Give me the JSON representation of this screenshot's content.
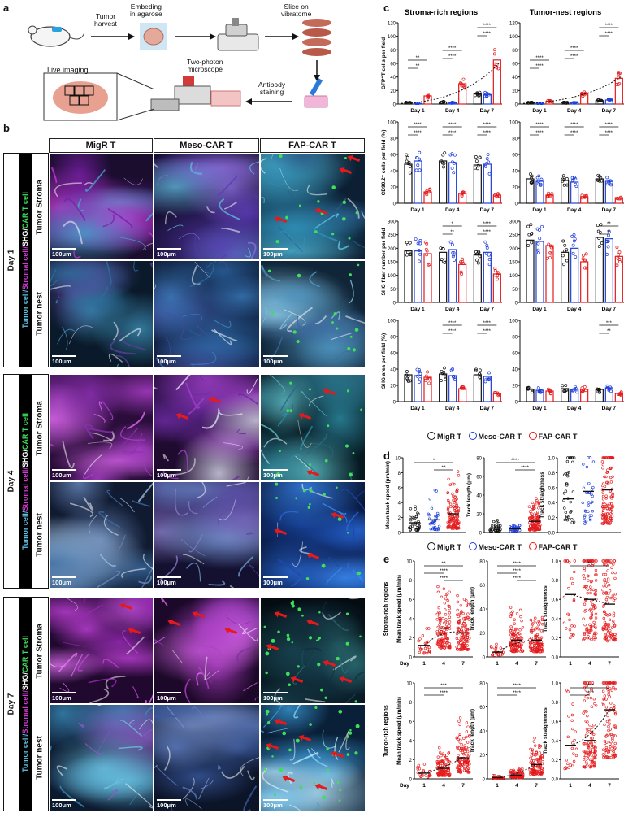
{
  "panels": {
    "a": "a",
    "b": "b",
    "c": "c",
    "d": "d",
    "e": "e"
  },
  "workflow": {
    "tumor_harvest": "Tumor\nharvest",
    "embedding": "Embeding\nin agarose",
    "slice": "Slice on\nvibratome",
    "two_photon": "Two-photon\nmicroscope",
    "antibody": "Antibody\nstaining",
    "live_imaging": "Live imaging"
  },
  "grid": {
    "columns": [
      "MigR T",
      "Meso-CAR T",
      "FAP-CAR T"
    ],
    "days": [
      "Day 1",
      "Day 4",
      "Day 7"
    ],
    "rows": [
      "Tumor Stroma",
      "Tumor nest"
    ],
    "stain": {
      "tumor": "Tumor cell/",
      "stromal": "Stromal cell/",
      "shg": "SHG/",
      "car": "CAR T cell"
    },
    "scale_bar": "100μm",
    "tile_colors": [
      {
        "mix": [
          "#7a1fa8",
          "#3fa9c9",
          "#c63bd4"
        ],
        "bg": "#1a0d2e"
      },
      {
        "mix": [
          "#5b3bb8",
          "#8a6bd6",
          "#5fb4d8"
        ],
        "bg": "#160f33"
      },
      {
        "mix": [
          "#2f8fb6",
          "#5ec4de",
          "#2a5a8a"
        ],
        "bg": "#0c1f33"
      },
      {
        "mix": [
          "#2b6f9a",
          "#3d8fb8",
          "#5a3f9a"
        ],
        "bg": "#0a1a2a"
      },
      {
        "mix": [
          "#2d67a4",
          "#3d7fc0",
          "#4a4aa0"
        ],
        "bg": "#0b1630"
      },
      {
        "mix": [
          "#4f95c0",
          "#87c4df",
          "#3d6aa0"
        ],
        "bg": "#102538"
      },
      {
        "mix": [
          "#b03fd0",
          "#e06af0",
          "#8a2fb0"
        ],
        "bg": "#2a0d3a"
      },
      {
        "mix": [
          "#a03fc8",
          "#dcdcee",
          "#6a2aa0"
        ],
        "bg": "#1f0b30"
      },
      {
        "mix": [
          "#2f8fa8",
          "#5fc0c8",
          "#2a6a80"
        ],
        "bg": "#071a22"
      },
      {
        "mix": [
          "#3a6aa0",
          "#6a8ac0",
          "#9ab8d8"
        ],
        "bg": "#101a30"
      },
      {
        "mix": [
          "#5a4aa8",
          "#8a7ac8",
          "#6a9ac8"
        ],
        "bg": "#141030"
      },
      {
        "mix": [
          "#2a6ad8",
          "#3a8af0",
          "#1a4aa8"
        ],
        "bg": "#061030"
      },
      {
        "mix": [
          "#c040d8",
          "#e070f0",
          "#9a2ab8"
        ],
        "bg": "#20082e"
      },
      {
        "mix": [
          "#b040c8",
          "#d868e8",
          "#8030a8"
        ],
        "bg": "#1c0828"
      },
      {
        "mix": [
          "#1a4a58",
          "#2a6a70",
          "#123040"
        ],
        "bg": "#040c12"
      },
      {
        "mix": [
          "#3a8ab8",
          "#6ac0e0",
          "#8a5ac0"
        ],
        "bg": "#0c1a30"
      },
      {
        "mix": [
          "#3a5aa0",
          "#5a7ac0",
          "#7a90c8"
        ],
        "bg": "#0c1428"
      },
      {
        "mix": [
          "#3a9ad8",
          "#8ad0f0",
          "#c0e8f8"
        ],
        "bg": "#0a2038"
      }
    ]
  },
  "panel_c": {
    "titles": [
      "Stroma-rich regions",
      "Tumor-nest regions"
    ],
    "days": [
      "Day 1",
      "Day 4",
      "Day 7"
    ],
    "ylabels": [
      "GFP⁺T cells per field",
      "CD90.2⁺ cells per field (%)",
      "SHG fiber number per field",
      "SHG area per field (%)"
    ],
    "yticks": [
      [
        "0",
        "20",
        "40",
        "60",
        "80",
        "100",
        "120"
      ],
      [
        "0",
        "20",
        "40",
        "60",
        "80",
        "100"
      ],
      [
        "0",
        "50",
        "100",
        "150",
        "200",
        "250",
        "300"
      ],
      [
        "0",
        "20",
        "40",
        "60",
        "80",
        "100"
      ]
    ],
    "ymax": [
      120,
      100,
      300,
      100
    ],
    "values": [
      [
        [
          2,
          1,
          12
        ],
        [
          3,
          2,
          30
        ],
        [
          15,
          14,
          65
        ]
      ],
      [
        [
          2,
          1,
          4
        ],
        [
          2,
          2,
          15
        ],
        [
          5,
          6,
          38
        ]
      ],
      [
        [
          48,
          52,
          14
        ],
        [
          52,
          50,
          12
        ],
        [
          47,
          48,
          10
        ]
      ],
      [
        [
          30,
          27,
          10
        ],
        [
          28,
          26,
          8
        ],
        [
          30,
          27,
          7
        ]
      ],
      [
        [
          190,
          190,
          180
        ],
        [
          185,
          195,
          140
        ],
        [
          175,
          185,
          105
        ]
      ],
      [
        [
          230,
          225,
          210
        ],
        [
          185,
          200,
          150
        ],
        [
          240,
          235,
          170
        ]
      ],
      [
        [
          33,
          32,
          30
        ],
        [
          34,
          32,
          16
        ],
        [
          33,
          31,
          10
        ]
      ],
      [
        [
          15,
          14,
          13
        ],
        [
          16,
          15,
          15
        ],
        [
          15,
          17,
          10
        ]
      ]
    ],
    "sig": [
      [
        [
          "**",
          "**"
        ],
        [
          "****",
          "****"
        ],
        [
          "****",
          "****"
        ]
      ],
      [
        [
          "****",
          "****"
        ],
        [
          "****",
          "****"
        ],
        [
          "****",
          "****"
        ]
      ],
      [
        [
          "****",
          "****"
        ],
        [
          "****",
          "****"
        ],
        [
          "****",
          "****"
        ]
      ],
      [
        [
          "****",
          "****"
        ],
        [
          "****",
          "****"
        ],
        [
          "****",
          "****"
        ]
      ],
      [
        [],
        [
          "*",
          "**"
        ],
        [
          "****",
          "****"
        ]
      ],
      [
        [],
        [],
        [
          "**",
          "**"
        ]
      ],
      [
        [],
        [
          "****",
          "****"
        ],
        [
          "****",
          "****"
        ]
      ],
      [
        [],
        [],
        [
          "***",
          "**"
        ]
      ]
    ]
  },
  "legend": {
    "items": [
      "MigR T",
      "Meso-CAR T",
      "FAP-CAR T"
    ]
  },
  "colors": {
    "migr": "#111111",
    "meso": "#1f3fd8",
    "fap": "#e41a1c"
  },
  "panel_d": {
    "ylabels": [
      "Mean track speed (μm/min)",
      "Track length (μm)",
      "Track straightness"
    ],
    "yticks": [
      [
        "0",
        "2",
        "4",
        "6",
        "8",
        "10"
      ],
      [
        "0",
        "20",
        "40",
        "60",
        "80"
      ],
      [
        "0.0",
        "0.2",
        "0.4",
        "0.6",
        "0.8",
        "1.0"
      ]
    ],
    "ymax": [
      10,
      80,
      1.0
    ],
    "medians": [
      [
        1.3,
        1.7,
        2.5
      ],
      [
        5,
        4,
        12
      ],
      [
        0.45,
        0.55,
        0.57
      ]
    ],
    "sig": [
      [
        "*",
        "**"
      ],
      [
        "****",
        "****"
      ],
      []
    ]
  },
  "panel_e": {
    "row_labels": [
      "Stroma-rich regions",
      "Tumor-rich regions"
    ],
    "day_label": "Day",
    "x": [
      "1",
      "4",
      "7"
    ],
    "ylabels": [
      [
        "Mean track speed (μm/min)",
        "Track length (μm)",
        "Track straightness"
      ],
      [
        "Mean track speed (μm/min)",
        "Track length (μm)",
        "Track straightness"
      ]
    ],
    "yticks": [
      [
        [
          "0",
          "2",
          "4",
          "6",
          "8",
          "10"
        ],
        [
          "0",
          "20",
          "40",
          "60",
          "80"
        ],
        [
          "0.0",
          "0.2",
          "0.4",
          "0.6",
          "0.8",
          "1.0"
        ]
      ],
      [
        [
          "0",
          "2",
          "4",
          "6",
          "8",
          "10"
        ],
        [
          "0",
          "20",
          "40",
          "60",
          "80"
        ],
        [
          "0.0",
          "0.2",
          "0.4",
          "0.6",
          "0.8",
          "1.0"
        ]
      ]
    ],
    "ymax": [
      [
        10,
        80,
        1.0
      ],
      [
        10,
        80,
        1.0
      ]
    ],
    "medians": [
      [
        [
          1.2,
          3,
          2.5
        ],
        [
          4,
          14,
          14
        ],
        [
          0.65,
          0.6,
          0.55
        ]
      ],
      [
        [
          0.6,
          1.1,
          2.2
        ],
        [
          1,
          3,
          12
        ],
        [
          0.35,
          0.4,
          0.72
        ]
      ]
    ],
    "sig": [
      [
        [
          "**",
          "****",
          "****"
        ],
        [
          "****",
          "****",
          "****"
        ],
        [
          "**"
        ]
      ],
      [
        [
          "***",
          "****"
        ],
        [
          "****",
          "****"
        ],
        [
          "****",
          "****"
        ]
      ]
    ]
  }
}
